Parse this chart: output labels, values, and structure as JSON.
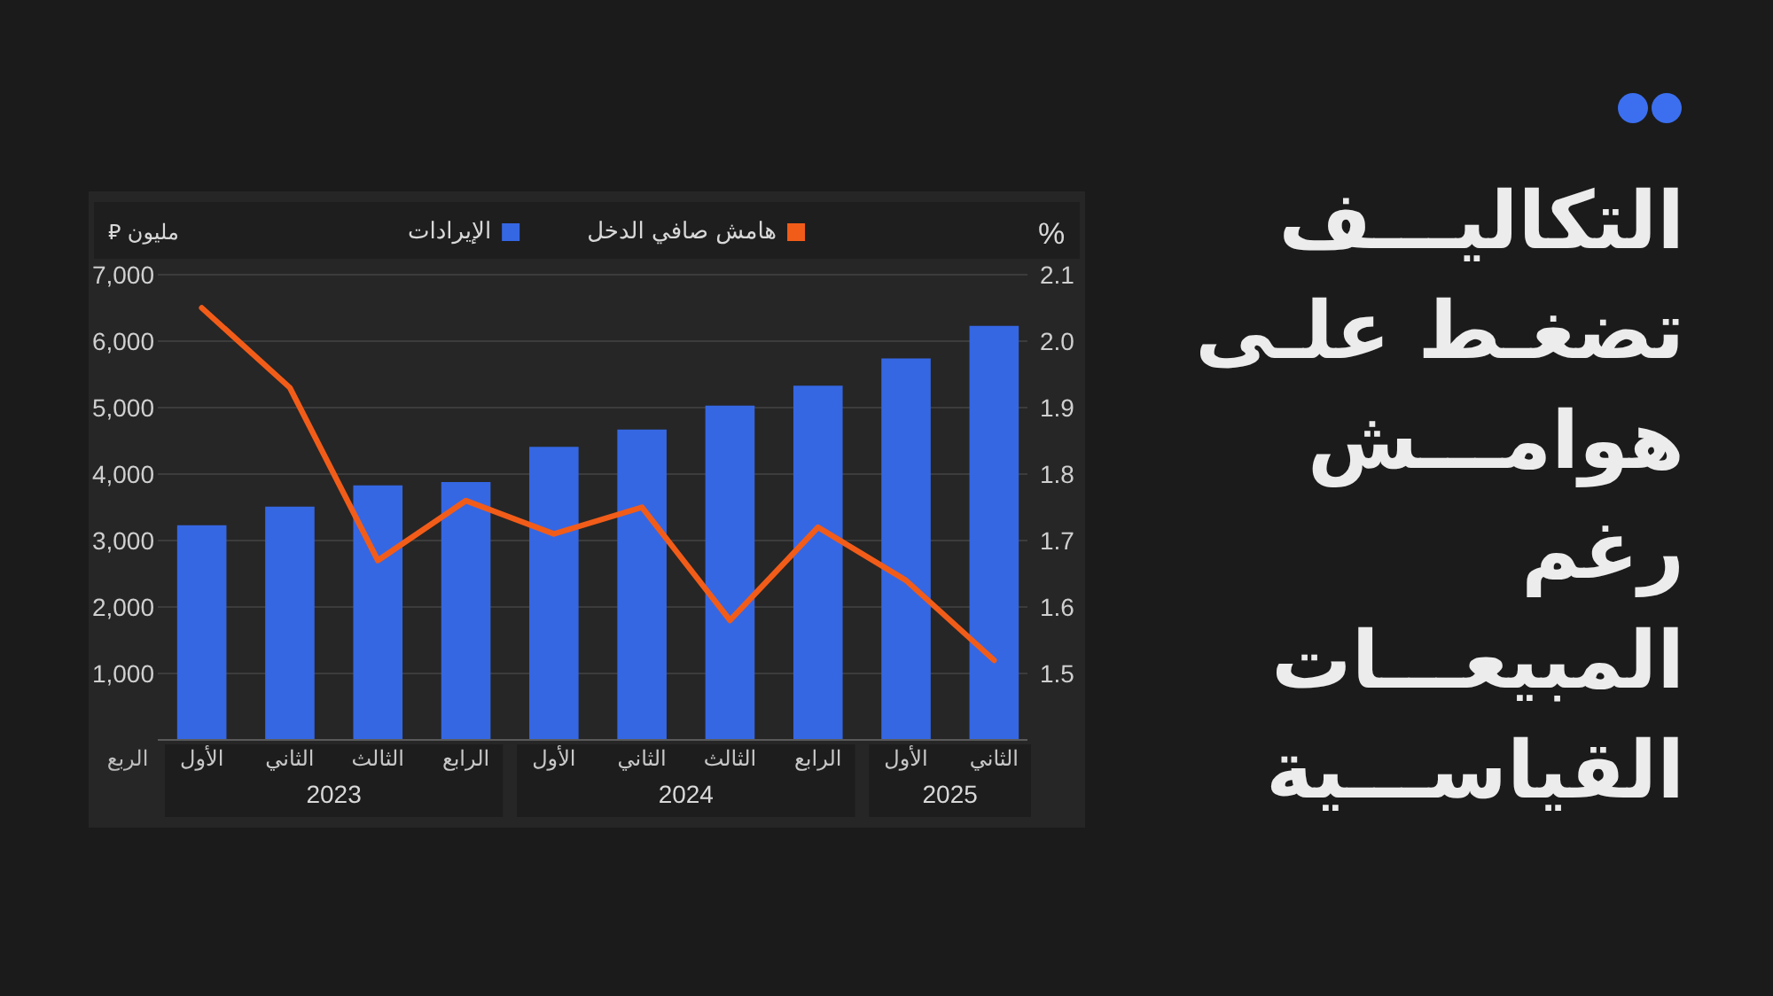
{
  "chart_data": {
    "type": "bar",
    "title": "التكاليـــف تضغـط علـى هوامـــش رغم المبيعـــات القياســـية",
    "xlabel": "الربع",
    "ylabel": "مليون ⃁",
    "y2label": "%",
    "categories": [
      "الأول",
      "الثاني",
      "الثالث",
      "الرابع",
      "الأول",
      "الثاني",
      "الثالث",
      "الرابع",
      "الأول",
      "الثاني"
    ],
    "annotations": [
      "2023",
      "2024",
      "2025"
    ],
    "series": [
      {
        "name": "الإيرادات",
        "color": "#3567e3",
        "values": [
          3230,
          3510,
          3830,
          3880,
          4410,
          4670,
          5030,
          5330,
          5740,
          6230
        ]
      },
      {
        "name": "هامش صافي الدخل",
        "type": "line",
        "axis": "y2",
        "color": "#f25c19",
        "values": [
          2.05,
          1.93,
          1.67,
          1.76,
          1.71,
          1.75,
          1.58,
          1.72,
          1.64,
          1.52
        ]
      }
    ],
    "ylim": [
      0,
      7000
    ],
    "yticks": [
      {
        "value": 1000,
        "label": "1,000"
      },
      {
        "value": 2000,
        "label": "2,000"
      },
      {
        "value": 3000,
        "label": "3,000"
      },
      {
        "value": 4000,
        "label": "4,000"
      },
      {
        "value": 5000,
        "label": "5,000"
      },
      {
        "value": 6000,
        "label": "6,000"
      },
      {
        "value": 7000,
        "label": "7,000"
      }
    ],
    "y2lim": [
      1.4,
      2.1
    ],
    "y2ticks": [
      1.5,
      1.6,
      1.7,
      1.8,
      1.9,
      {
        "value": 2.0,
        "label": "2.0"
      },
      2.1
    ],
    "grid": "y",
    "legend": "top",
    "line_style": "solid",
    "marker": "none"
  }
}
